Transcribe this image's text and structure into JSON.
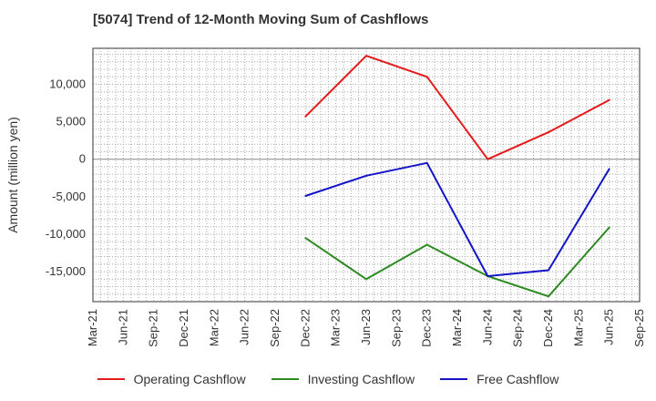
{
  "chart_data": {
    "type": "line",
    "title": "[5074]  Trend of 12-Month Moving Sum of Cashflows",
    "ylabel": "Amount (million yen)",
    "xlabel": "",
    "categories": [
      "Mar-21",
      "Jun-21",
      "Sep-21",
      "Dec-21",
      "Mar-22",
      "Jun-22",
      "Sep-22",
      "Dec-22",
      "Mar-23",
      "Jun-23",
      "Sep-23",
      "Dec-23",
      "Mar-24",
      "Jun-24",
      "Sep-24",
      "Dec-24",
      "Mar-25",
      "Jun-25",
      "Sep-25"
    ],
    "y_ticks": [
      -15000,
      -10000,
      -5000,
      0,
      5000,
      10000
    ],
    "y_tick_labels": [
      "-15,000",
      "-10,000",
      "-5,000",
      "0",
      "5,000",
      "10,000"
    ],
    "ylim": [
      -19000,
      14800
    ],
    "grid": true,
    "legend_position": "bottom",
    "series": [
      {
        "name": "Operating Cashflow",
        "color": "#e41a1c",
        "x": [
          "Dec-22",
          "Jun-23",
          "Dec-23",
          "Jun-24",
          "Dec-24",
          "Jun-25"
        ],
        "values": [
          5700,
          13800,
          11000,
          0,
          3600,
          7900
        ]
      },
      {
        "name": "Investing Cashflow",
        "color": "#2e8b22",
        "x": [
          "Dec-22",
          "Jun-23",
          "Dec-23",
          "Jun-24",
          "Dec-24",
          "Jun-25"
        ],
        "values": [
          -10500,
          -16000,
          -11400,
          -15600,
          -18300,
          -9100
        ]
      },
      {
        "name": "Free Cashflow",
        "color": "#1414c8",
        "x": [
          "Dec-22",
          "Jun-23",
          "Dec-23",
          "Jun-24",
          "Dec-24",
          "Jun-25"
        ],
        "values": [
          -4900,
          -2200,
          -500,
          -15600,
          -14800,
          -1300
        ]
      }
    ]
  }
}
